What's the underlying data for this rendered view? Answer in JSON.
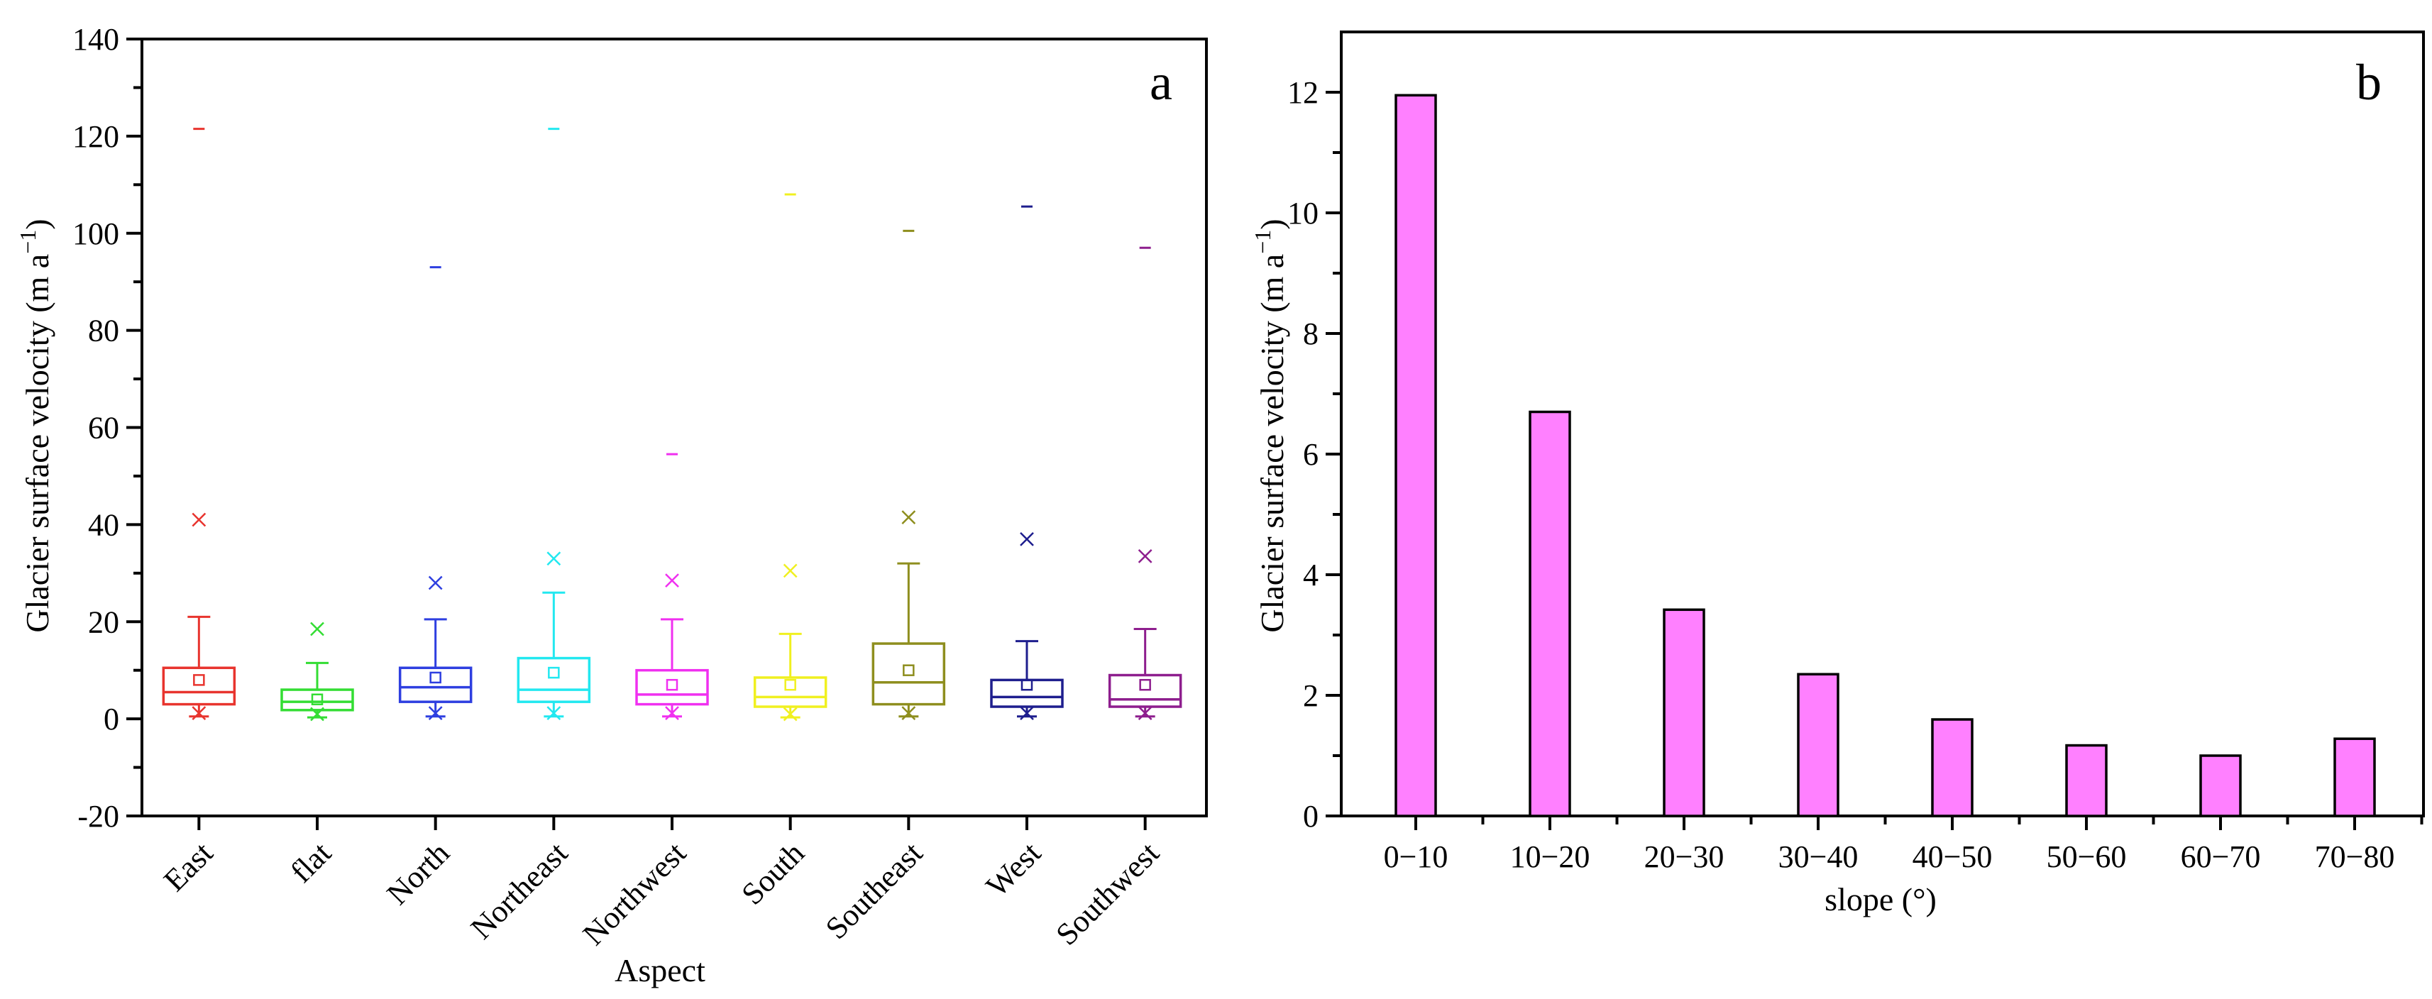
{
  "chart_data": [
    {
      "panel_label": "a",
      "type": "box",
      "xlabel": "Aspect",
      "ylabel": "Glacier surface velocity (m a",
      "ylabel_sup": "−1",
      "ylabel_close": ")",
      "ylim": [
        -20,
        140
      ],
      "yticks": [
        "140",
        "120",
        "100",
        "80",
        "60",
        "40",
        "20",
        "0",
        "-20"
      ],
      "ytick_values": [
        140,
        120,
        100,
        80,
        60,
        40,
        20,
        0,
        -20
      ],
      "categories": [
        {
          "name": "East",
          "color": "#e8342e",
          "min": 0.5,
          "q1": 3,
          "median": 5.5,
          "q3": 10.5,
          "whisker_high": 21,
          "mean": 8,
          "p99": 41,
          "max": 121.5
        },
        {
          "name": "flat",
          "color": "#33dd33",
          "min": 0.3,
          "q1": 1.8,
          "median": 3.5,
          "q3": 6,
          "whisker_high": 11.5,
          "mean": 4,
          "p99": 18.5,
          "max": null
        },
        {
          "name": "North",
          "color": "#2e3fe0",
          "min": 0.5,
          "q1": 3.5,
          "median": 6.5,
          "q3": 10.5,
          "whisker_high": 20.5,
          "mean": 8.5,
          "p99": 28,
          "max": 93
        },
        {
          "name": "Northeast",
          "color": "#22e8f0",
          "min": 0.5,
          "q1": 3.5,
          "median": 6,
          "q3": 12.5,
          "whisker_high": 26,
          "mean": 9.5,
          "p99": 33,
          "max": 121.5
        },
        {
          "name": "Northwest",
          "color": "#f030f0",
          "min": 0.5,
          "q1": 3,
          "median": 5,
          "q3": 10,
          "whisker_high": 20.5,
          "mean": 7,
          "p99": 28.5,
          "max": 54.5
        },
        {
          "name": "South",
          "color": "#f0f020",
          "min": 0.3,
          "q1": 2.5,
          "median": 4.5,
          "q3": 8.5,
          "whisker_high": 17.5,
          "mean": 7,
          "p99": 30.5,
          "max": 108
        },
        {
          "name": "Southeast",
          "color": "#8e8e1e",
          "min": 0.5,
          "q1": 3,
          "median": 7.5,
          "q3": 15.5,
          "whisker_high": 32,
          "mean": 10,
          "p99": 41.5,
          "max": 100.5
        },
        {
          "name": "West",
          "color": "#1e1e8e",
          "min": 0.5,
          "q1": 2.5,
          "median": 4.5,
          "q3": 8,
          "whisker_high": 16,
          "mean": 7,
          "p99": 37,
          "max": 105.5
        },
        {
          "name": "Southwest",
          "color": "#8e1e8e",
          "min": 0.5,
          "q1": 2.5,
          "median": 4,
          "q3": 9,
          "whisker_high": 18.5,
          "mean": 7,
          "p99": 33.5,
          "max": 97
        }
      ]
    },
    {
      "panel_label": "b",
      "type": "bar",
      "xlabel": "slope (°)",
      "ylabel": "Glacier surface velocity (m a",
      "ylabel_sup": "−1",
      "ylabel_close": ")",
      "ylim": [
        0,
        13
      ],
      "yticks": [
        "0",
        "2",
        "4",
        "6",
        "8",
        "10",
        "12"
      ],
      "ytick_values": [
        0,
        2,
        4,
        6,
        8,
        10,
        12
      ],
      "bar_color": "#ff80ff",
      "categories": [
        "0−10",
        "10−20",
        "20−30",
        "30−40",
        "40−50",
        "50−60",
        "60−70",
        "70−80"
      ],
      "values": [
        11.95,
        6.7,
        3.42,
        2.35,
        1.6,
        1.17,
        1.0,
        1.28
      ]
    }
  ]
}
